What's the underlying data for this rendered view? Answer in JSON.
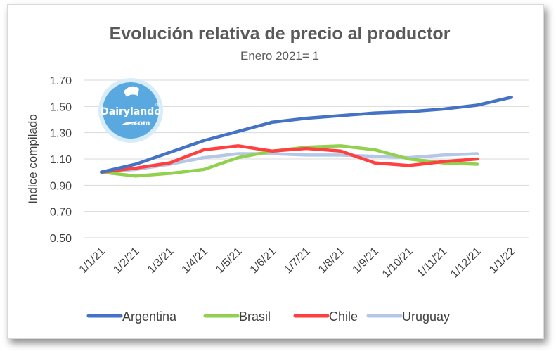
{
  "chart_data": {
    "type": "line",
    "title": "Evolución relativa de precio al productor",
    "subtitle": "Enero 2021= 1",
    "xlabel": "",
    "ylabel": "Indice compilado",
    "ylim": [
      0.5,
      1.7
    ],
    "yticks": [
      "0.50",
      "0.70",
      "0.90",
      "1.10",
      "1.30",
      "1.50",
      "1.70"
    ],
    "categories": [
      "1/1/21",
      "1/2/21",
      "1/3/21",
      "1/4/21",
      "1/5/21",
      "1/6/21",
      "1/7/21",
      "1/8/21",
      "1/9/21",
      "1/10/21",
      "1/11/21",
      "1/12/21",
      "1/1/22"
    ],
    "grid": true,
    "legend_position": "bottom",
    "series": [
      {
        "name": "Argentina",
        "color": "#4472c4",
        "values": [
          1.0,
          1.06,
          1.15,
          1.24,
          1.31,
          1.38,
          1.41,
          1.43,
          1.45,
          1.46,
          1.48,
          1.51,
          1.57
        ]
      },
      {
        "name": "Brasil",
        "color": "#92d050",
        "values": [
          1.0,
          0.97,
          0.99,
          1.02,
          1.11,
          1.16,
          1.19,
          1.2,
          1.17,
          1.1,
          1.07,
          1.06,
          null
        ]
      },
      {
        "name": "Chile",
        "color": "#ff4040",
        "values": [
          1.0,
          1.03,
          1.07,
          1.17,
          1.2,
          1.16,
          1.18,
          1.16,
          1.07,
          1.05,
          1.08,
          1.1,
          null
        ]
      },
      {
        "name": "Uruguay",
        "color": "#b4c7e7",
        "values": [
          1.0,
          1.02,
          1.06,
          1.11,
          1.14,
          1.14,
          1.13,
          1.13,
          1.12,
          1.11,
          1.13,
          1.14,
          null
        ]
      }
    ]
  },
  "logo": {
    "text_main": "Dairylando",
    "text_sub": ".com",
    "mark": "®"
  }
}
